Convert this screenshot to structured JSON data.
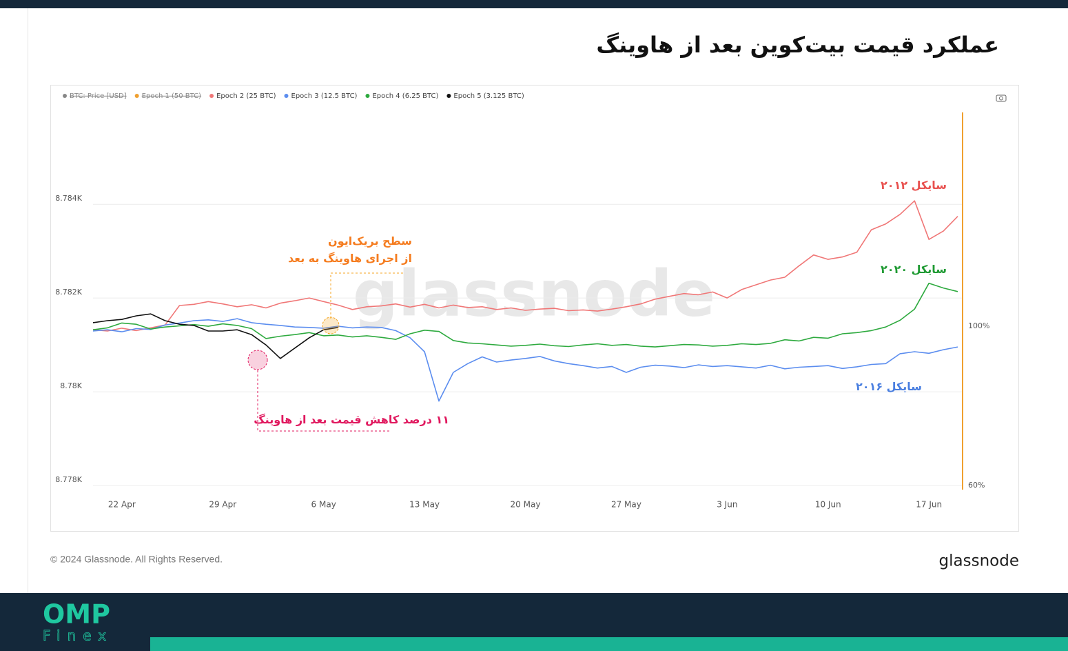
{
  "header": {
    "title": "عملکرد قیمت بیت‌کوین بعد از هاوینگ"
  },
  "chart_data": {
    "type": "line",
    "categories": [
      null,
      null,
      "22 Apr",
      null,
      null,
      null,
      null,
      null,
      null,
      "29 Apr",
      null,
      null,
      null,
      null,
      null,
      null,
      "6 May",
      null,
      null,
      null,
      null,
      null,
      null,
      "13 May",
      null,
      null,
      null,
      null,
      null,
      null,
      "20 May",
      null,
      null,
      null,
      null,
      null,
      null,
      "27 May",
      null,
      null,
      null,
      null,
      null,
      null,
      "3 Jun",
      null,
      null,
      null,
      null,
      null,
      null,
      "10 Jun",
      null,
      null,
      null,
      null,
      null,
      null,
      "17 Jun",
      null,
      null
    ],
    "series": [
      {
        "name": "Epoch 2 (25 BTC)",
        "color": "#f07777",
        "axis": "y2",
        "values": [
          99.1,
          98.8,
          99.5,
          98.9,
          99.6,
          100.3,
          105.2,
          105.5,
          106.2,
          105.6,
          104.9,
          105.4,
          104.6,
          105.8,
          106.4,
          107.1,
          106.2,
          105.3,
          104.2,
          104.9,
          105.1,
          105.6,
          104.8,
          105.5,
          104.6,
          105.3,
          104.7,
          104.9,
          104.2,
          104.6,
          104.0,
          104.3,
          104.5,
          103.9,
          104.1,
          103.8,
          104.3,
          104.9,
          105.6,
          106.8,
          107.5,
          108.2,
          107.9,
          108.6,
          107.1,
          109.2,
          110.4,
          111.6,
          112.3,
          115.2,
          117.9,
          116.8,
          117.4,
          118.6,
          124.2,
          125.7,
          128.1,
          131.5,
          121.8,
          123.9,
          127.6
        ]
      },
      {
        "name": "Epoch 3 (12.5 BTC)",
        "color": "#5b8def",
        "axis": "y2",
        "values": [
          98.8,
          99.1,
          98.6,
          99.4,
          99.2,
          100.3,
          100.8,
          101.4,
          101.6,
          101.2,
          101.9,
          100.9,
          100.5,
          100.2,
          99.8,
          99.7,
          99.5,
          100.0,
          99.6,
          99.8,
          99.7,
          98.9,
          97.1,
          93.6,
          81.2,
          88.4,
          90.6,
          92.3,
          91.0,
          91.5,
          91.9,
          92.4,
          91.3,
          90.6,
          90.1,
          89.5,
          89.9,
          88.4,
          89.7,
          90.2,
          90.0,
          89.6,
          90.3,
          89.9,
          90.1,
          89.8,
          89.5,
          90.2,
          89.3,
          89.7,
          89.9,
          90.1,
          89.4,
          89.8,
          90.4,
          90.6,
          93.1,
          93.6,
          93.2,
          94.1,
          94.8
        ]
      },
      {
        "name": "Epoch 4 (6.25 BTC)",
        "color": "#2eaa3f",
        "axis": "y2",
        "values": [
          99.1,
          99.6,
          100.8,
          100.5,
          99.3,
          99.8,
          100.1,
          100.4,
          100.0,
          100.6,
          100.2,
          99.4,
          96.9,
          97.5,
          97.9,
          98.4,
          97.6,
          97.8,
          97.3,
          97.6,
          97.2,
          96.7,
          98.1,
          99.0,
          98.7,
          96.4,
          95.8,
          95.6,
          95.3,
          95.0,
          95.2,
          95.5,
          95.1,
          94.9,
          95.3,
          95.6,
          95.2,
          95.4,
          95.0,
          94.8,
          95.1,
          95.4,
          95.3,
          95.0,
          95.2,
          95.6,
          95.4,
          95.7,
          96.6,
          96.3,
          97.2,
          97.0,
          98.1,
          98.4,
          98.9,
          99.8,
          101.5,
          104.3,
          110.8,
          109.6,
          108.7
        ]
      },
      {
        "name": "Epoch 5 (3.125 BTC)",
        "color": "#111111",
        "axis": "y2",
        "values": [
          100.9,
          101.4,
          101.7,
          102.6,
          103.1,
          101.4,
          100.5,
          100.2,
          98.8,
          98.8,
          99.1,
          97.9,
          95.3,
          91.9,
          94.5,
          97.1,
          99.1,
          99.7,
          null,
          null,
          null,
          null,
          null,
          null,
          null,
          null,
          null,
          null,
          null,
          null,
          null,
          null,
          null,
          null,
          null,
          null,
          null,
          null,
          null,
          null,
          null,
          null,
          null,
          null,
          null,
          null,
          null,
          null,
          null,
          null,
          null,
          null,
          null,
          null,
          null,
          null,
          null,
          null,
          null,
          null,
          null
        ]
      }
    ],
    "legend_hidden": [
      {
        "name": "BTC: Price [USD]",
        "color": "#888888"
      },
      {
        "name": "Epoch 1 (50 BTC)",
        "color": "#f0a030"
      }
    ],
    "ylim": [
      8778,
      8785.96
    ],
    "yticks": [
      {
        "value": 8778,
        "label": "8.778K"
      },
      {
        "value": 8780,
        "label": "8.78K"
      },
      {
        "value": 8782,
        "label": "8.782K"
      },
      {
        "value": 8784,
        "label": "8.784K"
      }
    ],
    "y2lim": [
      60,
      153.7
    ],
    "y2ticks": [
      {
        "value": 60,
        "label": "60%"
      },
      {
        "value": 100,
        "label": "100%"
      }
    ],
    "grid": true,
    "watermark": "glassnode",
    "annotations": {
      "breakeven": {
        "lines": [
          "سطح بریک‌ایون",
          "از اجرای هاوینگ به بعد"
        ],
        "color": "#f57c1f"
      },
      "drop": {
        "text": "۱۱ درصد کاهش قیمت بعد از هاوینگ",
        "color": "#e0185e"
      },
      "cycle_2012": {
        "text": "سایکل ۲۰۱۲",
        "color": "#e8514f"
      },
      "cycle_2020": {
        "text": "سایکل ۲۰۲۰",
        "color": "#1f9a33"
      },
      "cycle_2016": {
        "text": "سایکل ۲۰۱۶",
        "color": "#4a7fe0"
      }
    }
  },
  "footer": {
    "copyright": "© 2024 Glassnode. All Rights Reserved.",
    "brand": "glassnode"
  },
  "logo": {
    "name": "OMP",
    "sub": "Finex"
  }
}
